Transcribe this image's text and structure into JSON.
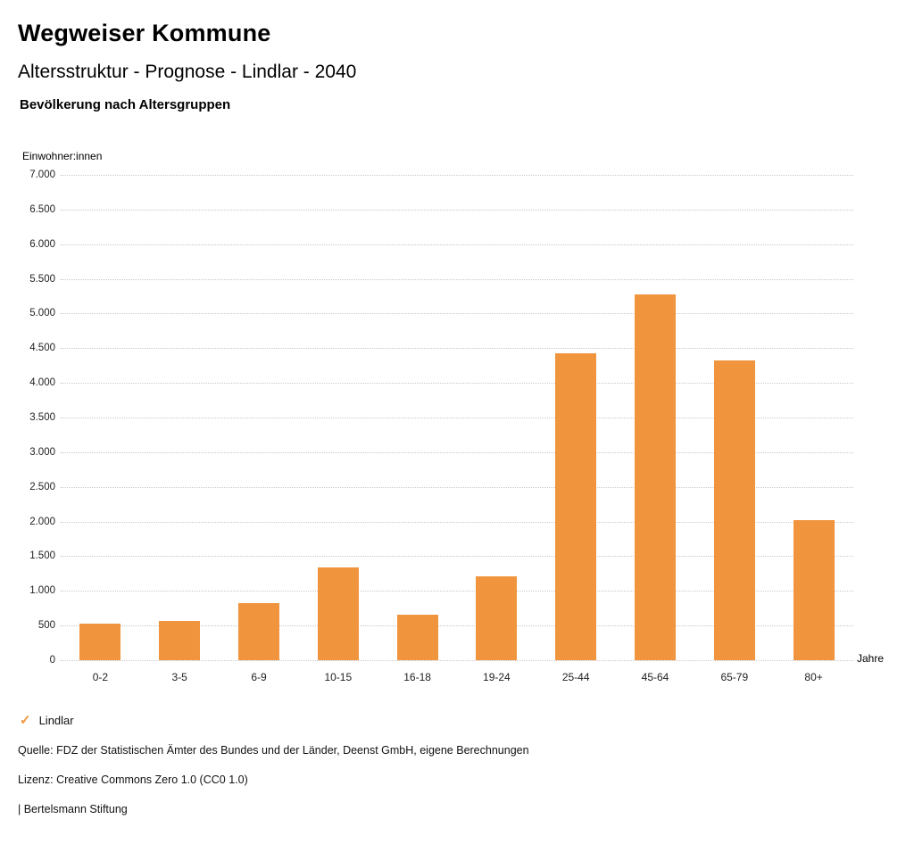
{
  "header": {
    "title": "Wegweiser Kommune",
    "subtitle": "Altersstruktur - Prognose - Lindlar - 2040"
  },
  "legend": {
    "label": "Lindlar",
    "checkmark_color": "#F0943E"
  },
  "footer": {
    "source": "Quelle: FDZ der Statistischen Ämter des Bundes und der Länder, Deenst GmbH, eigene Berechnungen",
    "license": "Lizenz: Creative Commons Zero 1.0 (CC0 1.0)",
    "attribution": "| Bertelsmann Stiftung"
  },
  "chart_data": {
    "type": "bar",
    "title": "Bevölkerung nach Altersgruppen",
    "y_axis_title": "Einwohner:innen",
    "x_axis_title": "Jahre",
    "series_name": "Lindlar",
    "bar_color": "#F0943E",
    "grid": "horizontal dotted",
    "legend_position": "bottom-left",
    "ylim": [
      0,
      7000
    ],
    "y_tick_step": 500,
    "y_tick_labels": [
      "0",
      "500",
      "1.000",
      "1.500",
      "2.000",
      "2.500",
      "3.000",
      "3.500",
      "4.000",
      "4.500",
      "5.000",
      "5.500",
      "6.000",
      "6.500",
      "7.000"
    ],
    "categories": [
      "0-2",
      "3-5",
      "6-9",
      "10-15",
      "16-18",
      "19-24",
      "25-44",
      "45-64",
      "65-79",
      "80+"
    ],
    "values": [
      530,
      570,
      830,
      1340,
      660,
      1210,
      4430,
      5280,
      4320,
      2020
    ]
  }
}
